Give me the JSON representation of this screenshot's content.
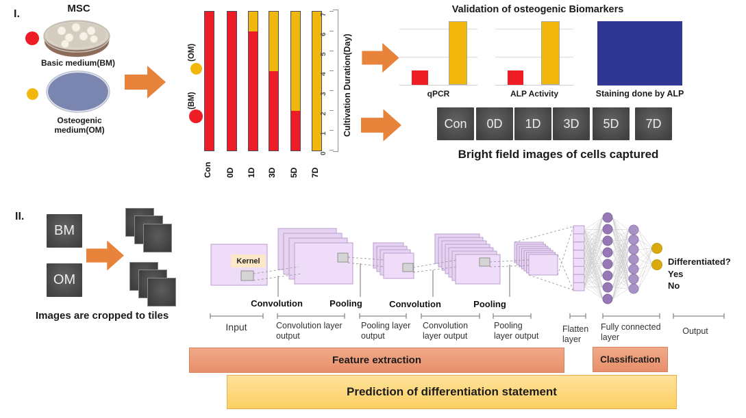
{
  "colors": {
    "red": "#ee1c25",
    "yellow": "#f2b70d",
    "orange_arrow": "#e8833c",
    "salmon_bar": "#ea9878",
    "gold_bar": "#fdd87c",
    "lavender": "#eedcf8",
    "lavender_back": "#e6d3f2",
    "lavender_border": "#b99ccc",
    "node_purple": "#9678b4",
    "node_purple_light": "#a993c6",
    "node_yellow": "#d9a90e",
    "line_gray": "#c6c6c6"
  },
  "section1": {
    "index": "I.",
    "msc_title": "MSC",
    "bm_caption": "Basic medium(BM)",
    "om_caption": "Osteogenic medium(OM)"
  },
  "chart_data": [
    {
      "id": "cultivation",
      "type": "bar",
      "subtype": "stacked-vertical",
      "categories": [
        "Con",
        "0D",
        "1D",
        "3D",
        "5D",
        "7D"
      ],
      "series": [
        {
          "name": "(BM)",
          "color": "#ee1c25",
          "values": [
            7,
            7,
            6,
            4,
            2,
            0
          ]
        },
        {
          "name": "(OM)",
          "color": "#f2b70d",
          "values": [
            0,
            0,
            1,
            3,
            5,
            7
          ]
        }
      ],
      "ylabel": "Cultivation Duration(Day)",
      "ylim": [
        0,
        7
      ],
      "yticks": [
        0,
        1,
        2,
        3,
        4,
        5,
        6,
        7
      ],
      "legend": [
        {
          "label": "(OM)",
          "color": "#f2b70d"
        },
        {
          "label": "(BM)",
          "color": "#ee1c25"
        }
      ]
    },
    {
      "id": "qpcr",
      "type": "bar",
      "title": "qPCR",
      "categories": [
        "BM",
        "OM"
      ],
      "values": [
        1,
        4.4
      ],
      "colors": [
        "#ee1c25",
        "#f2b70d"
      ],
      "ylim": [
        0,
        4.4
      ],
      "gridlines": true
    },
    {
      "id": "alp",
      "type": "bar",
      "title": "ALP Activity",
      "categories": [
        "BM",
        "OM"
      ],
      "values": [
        1,
        4.4
      ],
      "colors": [
        "#ee1c25",
        "#f2b70d"
      ],
      "ylim": [
        0,
        4.4
      ],
      "gridlines": true
    }
  ],
  "validation": {
    "title": "Validation of osteogenic Biomarkers",
    "staining_caption": "Staining done by ALP"
  },
  "brightfield": {
    "tiles": [
      "Con",
      "0D",
      "1D",
      "3D",
      "5D",
      "7D"
    ],
    "caption": "Bright field images of cells captured"
  },
  "section2": {
    "index": "II.",
    "bm_tile": "BM",
    "om_tile": "OM",
    "caption": "Images are cropped to tiles"
  },
  "cnn": {
    "kernel_label": "Kernel",
    "op_labels": [
      "Convolution",
      "Pooling",
      "Convolution",
      "Pooling"
    ],
    "stage_labels": [
      "Input",
      "Convolution layer\noutput",
      "Pooling layer\noutput",
      "Convolution\nlayer output",
      "Pooling\nlayer output",
      "Flatten\nlayer",
      "Fully connected\nlayer",
      "Output"
    ],
    "question": "Differentiated?",
    "answers": [
      "Yes",
      "No"
    ],
    "structure": {
      "conv1_maps": 4,
      "pool1_maps": 4,
      "conv2_maps": 7,
      "pool2_maps": 7,
      "flatten_cells": 8,
      "fc_layer1_nodes": 8,
      "fc_layer2_nodes": 7,
      "output_nodes": 2
    }
  },
  "phase_bars": {
    "feature": "Feature extraction",
    "classification": "Classification",
    "prediction": "Prediction of differentiation statement"
  }
}
